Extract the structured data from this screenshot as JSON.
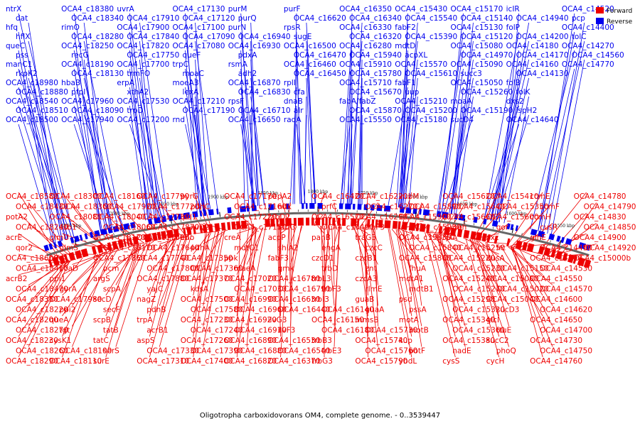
{
  "caption": "Oligotropha carboxidovorans OM4, complete genome. - 0..3539447",
  "legend": [
    {
      "label": "Forward",
      "color": "#ee0000"
    },
    {
      "label": "Reverse",
      "color": "#0000ee"
    }
  ],
  "colors": {
    "forward": "#ee0000",
    "reverse": "#0000ee",
    "backbone": "#666666"
  },
  "ticks": [
    "2050 kbp",
    "2000 kbp",
    "1950 kbp",
    "1900 kbp",
    "1850 kbp",
    "1800 kbp",
    "1750 kbp",
    "1700 kbp",
    "1650 kbp",
    "1600 kbp",
    "1550 kbp"
  ],
  "reverse_labels": [
    "ntrX",
    "dat",
    "hfq",
    "hflX",
    "queC",
    "pss",
    "manC1",
    "rkpK2",
    "OCA4_c18980",
    "OCA4_c18880",
    "OCA4_c18540",
    "OCA4_c18510",
    "OCA4_c18500",
    "OCA4_c18380",
    "OCA4_c18340",
    "rimO",
    "OCA4_c18280",
    "OCA4_c18250",
    "recG",
    "OCA4_c18190",
    "OCA4_c18130",
    "hbaB",
    "pfpI",
    "OCA4_c17960",
    "OCA4_c18090",
    "OCA4_c17940",
    "uvrA",
    "OCA4_c17910",
    "OCA4_c17900",
    "OCA4_c17840",
    "OCA4_c17820",
    "OCA4_c17750",
    "OCA4_c17700",
    "trmFO",
    "erpA",
    "xthA2",
    "OCA4_c17530",
    "trpD",
    "OCA4_c17200",
    "OCA4_c17130",
    "OCA4_c17120",
    "OCA4_c17100",
    "OCA4_c17090",
    "OCA4_c17080",
    "queF",
    "trpC",
    "moaC",
    "moeA3",
    "lexA",
    "OCA4_c17210",
    "OCA4_c17190",
    "rnd",
    "purM",
    "purQ",
    "purN",
    "OCA4_c16940",
    "OCA4_c16930",
    "pdxA",
    "rsmA",
    "adh2",
    "OCA4_c16870",
    "OCA4_c16830",
    "rpsF",
    "OCA4_c16710",
    "OCA4_c16650",
    "purF",
    "OCA4_c16620",
    "rpsR",
    "sugE",
    "OCA4_c16500",
    "OCA4_c16470",
    "OCA4_c16460",
    "OCA4_c16450",
    "rplI",
    "cfa",
    "dnaB",
    "alr",
    "radA",
    "OCA4_c16350",
    "OCA4_c16340",
    "OCA4_c16330",
    "OCA4_c16320",
    "OCA4_c16280",
    "OCA4_c15940",
    "OCA4_c15910",
    "OCA4_c15780",
    "OCA4_c15710",
    "OCA4_c15670",
    "fabA/fabZ",
    "OCA4_c15870",
    "OCA4_c15550",
    "OCA4_c15430",
    "OCA4_c15540",
    "fabF2",
    "OCA4_c15390",
    "mdtD",
    "acpXL",
    "OCA4_c15570",
    "OCA4_c15610",
    "fabF1",
    "uup",
    "OCA4_c15210",
    "OCA4_c15200",
    "OCA4_c15180",
    "OCA4_c15170",
    "OCA4_c15140",
    "OCA4_c15130",
    "OCA4_c15120",
    "OCA4_c15080",
    "OCA4_c14970",
    "OCA4_c15090",
    "succ3",
    "OCA4_c15050",
    "OCA4_c15260",
    "moaA",
    "OCA4_c15190",
    "sucD4",
    "icIR",
    "OCA4_c14940",
    "folP",
    "OCA4_c14200",
    "OCA4_c14180",
    "OCA4_c14170",
    "OCA4_c14160",
    "OCA4_c14130",
    "folB",
    "folK",
    "dxs2",
    "ispH2",
    "OCA4_c14640",
    "OCA4_c14520",
    "pcp",
    "OCA4_c14400",
    "tolC",
    "OCA4_c14270",
    "OCA4_c14560",
    "OCA4_c14770"
  ],
  "forward_labels": [
    "OCA4_c18580",
    "OCA4_c18430",
    "potA2",
    "OCA4_c18240",
    "acrE",
    "qor2",
    "OCA4_c18600",
    "OCA4_c18410",
    "acrB2",
    "OCA4_c18470",
    "OCA4_c18350",
    "OCA4_c18220",
    "OCA4_c18200",
    "OCA4_c18270",
    "OCA4_c18230",
    "OCA4_c18260",
    "OCA4_c18290",
    "OCA4_c18300",
    "OCA4_c18360",
    "OCA4_c18080",
    "ssb1",
    "glmU",
    "glmS",
    "mfd",
    "coaD",
    "ppi1",
    "gyrA",
    "OCA4_c17980",
    "ppi2",
    "queA",
    "tgt",
    "cysK1",
    "OCA4_c18100",
    "OCA4_c18110",
    "OCA4_c18160",
    "OCA4_c17920",
    "OCA4_c18040",
    "OCA4_c18060",
    "OCA4_c18120",
    "OCA4_c18170",
    "OCA4_c17850",
    "pcm",
    "argS",
    "scpA",
    "secD",
    "secF",
    "scpB",
    "tatB",
    "tatC",
    "serS",
    "surE",
    "OCA4_c17790",
    "OCA4_c17720",
    "OCA4_c17730",
    "OCA4_c17870",
    "OCA4_c17600",
    "OCA4_c17640",
    "OCA4_c17740",
    "OCA4_c17800",
    "OCA4_c17880",
    "yajC",
    "nagZ",
    "pdhB",
    "trpA",
    "acrB1",
    "aspS",
    "OCA4_c17330",
    "OCA4_c17310",
    "pyrG",
    "pdhC",
    "lpd1",
    "ilvD2",
    "eno",
    "pdhA",
    "OCA4_c17350",
    "OCA4_c17360",
    "OCA4_c17370",
    "kdsA",
    "OCA4_c17500",
    "OCA4_c17580",
    "OCA4_c17230",
    "OCA4_c17240",
    "OCA4_c17260",
    "OCA4_c17390",
    "OCA4_c17400",
    "OCA4_c17170",
    "OCA4_c17160",
    "OCA4_c17220",
    "OCA4_c17150",
    "creA",
    "mdtC1",
    "ppk",
    "maeA",
    "OCA4_c17020",
    "OCA4_c17030",
    "OCA4_c16990",
    "OCA4_c16960",
    "OCA4_c16920",
    "OCA4_c16910",
    "OCA4_c16890",
    "OCA4_c16880",
    "OCA4_c16820",
    "pepA2",
    "ndk",
    "fabD2",
    "fabG",
    "acpP",
    "shiA2",
    "fabF3",
    "gmk",
    "OCA4_c16780",
    "OCA4_c16790",
    "OCA4_c16630",
    "OCA4_c16440",
    "ilvG3",
    "ilvF3",
    "OCA4_c16530",
    "OCA4_c16540",
    "OCA4_c16370",
    "OCA4_c16420",
    "prfC",
    "OCA4_c16570",
    "OCA4_c16490",
    "panB",
    "engA",
    "czcD1",
    "trbD",
    "trbL3",
    "trbF3",
    "trbI3",
    "OCA4_c16140",
    "OCA4_c16150",
    "OCA4_c16180",
    "trbB3",
    "trbE3",
    "trbG3",
    "OCA4_c16220",
    "OCA4_c16270",
    "OCA4_c16290",
    "traF3",
    "traG3",
    "czcC",
    "czcB1",
    "znt",
    "czcA3",
    "rlmE",
    "guaB",
    "guaA",
    "mmsB",
    "OCA4_c15730",
    "OCA4_c15740",
    "OCA4_c15760",
    "OCA4_c15790",
    "vubM",
    "OCA4_c15890",
    "OCA4_c15900",
    "OCA4_c15930",
    "OCA4_c15830",
    "OCA4_c15840",
    "OCA4_c15860",
    "fhuA",
    "mdtA1",
    "mdtB1",
    "psd",
    "pssA",
    "motA",
    "motB",
    "kup",
    "potF",
    "ybdL",
    "OCA4_c15620",
    "OCA4_c15640",
    "OCA4_c15660",
    "gph",
    "rpiA",
    "OCA4_c15250",
    "OCA4_c15220",
    "OCA4_c15230",
    "OCA4_c15240",
    "OCA4_c15270",
    "OCA4_c15290",
    "OCA4_c15320",
    "OCA4_c15340",
    "OCA4_c15360",
    "OCA4_c15380",
    "nadE",
    "cysS",
    "OCA4_c15410",
    "OCA4_c15350",
    "OCA4_c15600",
    "gor",
    "oxc",
    "frc",
    "dusA",
    "OCA4_c15150",
    "OCA4_c15000",
    "OCA4_c15020",
    "OCA4_c15040",
    "sucD3",
    "glcI",
    "ttuE",
    "sucC2",
    "phoQ",
    "cycH",
    "ccmE",
    "ccmF",
    "ccmH",
    "cusR",
    "glnE",
    "OCA4_c14490",
    "OCA4_c14500",
    "OCA4_c14530",
    "OCA4_c14550",
    "OCA4_c14570",
    "OCA4_c14600",
    "OCA4_c14620",
    "OCA4_c14650",
    "OCA4_c14700",
    "OCA4_c14730",
    "OCA4_c14750",
    "OCA4_c14760",
    "OCA4_c14780",
    "OCA4_c14790",
    "OCA4_c14830",
    "OCA4_c14850",
    "OCA4_c14900",
    "OCA4_c14920",
    "OCA4_c15000b"
  ]
}
